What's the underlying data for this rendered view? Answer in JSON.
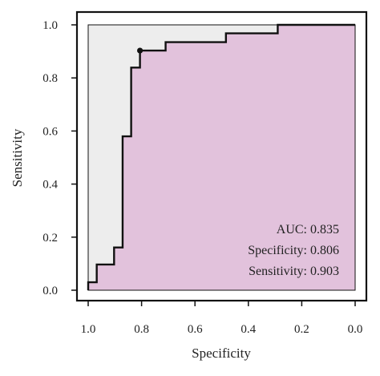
{
  "chart_data": {
    "type": "line",
    "title": "",
    "xlabel": "Specificity",
    "ylabel": "Sensitivity",
    "x_reversed": true,
    "xlim": [
      1.0,
      0.0
    ],
    "ylim": [
      0.0,
      1.0
    ],
    "xticks": [
      1.0,
      0.8,
      0.6,
      0.4,
      0.2,
      0.0
    ],
    "yticks": [
      0.0,
      0.2,
      0.4,
      0.6,
      0.8,
      1.0
    ],
    "xtick_labels": [
      "1.0",
      "0.8",
      "0.6",
      "0.4",
      "0.2",
      "0.0"
    ],
    "ytick_labels": [
      "0.0",
      "0.2",
      "0.4",
      "0.6",
      "0.8",
      "1.0"
    ],
    "grid": false,
    "series": [
      {
        "points": [
          [
            1.0,
            0.0
          ],
          [
            1.0,
            0.03
          ],
          [
            0.968,
            0.03
          ],
          [
            0.968,
            0.097
          ],
          [
            0.903,
            0.097
          ],
          [
            0.903,
            0.161
          ],
          [
            0.871,
            0.161
          ],
          [
            0.871,
            0.58
          ],
          [
            0.839,
            0.58
          ],
          [
            0.839,
            0.839
          ],
          [
            0.806,
            0.839
          ],
          [
            0.806,
            0.903
          ],
          [
            0.71,
            0.903
          ],
          [
            0.71,
            0.935
          ],
          [
            0.484,
            0.935
          ],
          [
            0.484,
            0.968
          ],
          [
            0.29,
            0.968
          ],
          [
            0.29,
            1.0
          ],
          [
            0.0,
            1.0
          ]
        ]
      }
    ],
    "threshold_point": {
      "x": 0.806,
      "y": 0.903
    },
    "annotations": [
      "AUC: 0.835",
      "Specificity: 0.806",
      "Sensitivity: 0.903"
    ],
    "colors": {
      "auc_fill": "#e2c2dc",
      "upper_fill": "#ededed",
      "line": "#111111",
      "frame": "#111111"
    }
  }
}
